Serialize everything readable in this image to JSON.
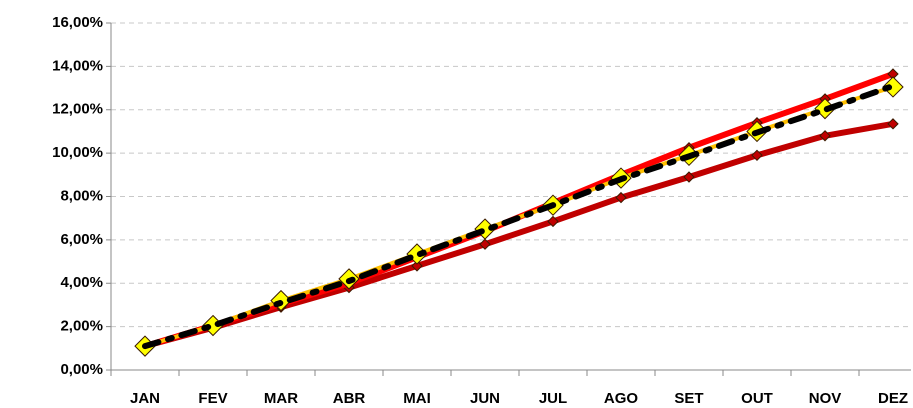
{
  "chart_data": {
    "type": "line",
    "categories": [
      "JAN",
      "FEV",
      "MAR",
      "ABR",
      "MAI",
      "JUN",
      "JUL",
      "AGO",
      "SET",
      "OUT",
      "NOV",
      "DEZ"
    ],
    "series": [
      {
        "color": "#c00000",
        "line_width": 6,
        "marker": "diamond",
        "marker_size": 5,
        "marker_color": "#c00000",
        "values": [
          1.1,
          1.95,
          2.9,
          3.8,
          4.8,
          5.8,
          6.85,
          7.95,
          8.9,
          9.9,
          10.8,
          11.35
        ]
      },
      {
        "color": "#ff0000",
        "line_width": 6,
        "marker": "diamond",
        "marker_size": 5,
        "marker_color": "#c00000",
        "values": [
          1.1,
          2.05,
          3.05,
          4.0,
          5.2,
          6.4,
          7.7,
          9.0,
          10.25,
          11.4,
          12.5,
          13.65
        ]
      },
      {
        "color": "#ffc000",
        "line_width": 4,
        "marker": "diamond",
        "marker_size": 10,
        "marker_color": "#ffff00",
        "values": [
          1.1,
          2.05,
          3.2,
          4.2,
          5.35,
          6.5,
          7.6,
          8.85,
          9.9,
          11.0,
          12.05,
          13.05
        ]
      },
      {
        "color": "#000000",
        "line_width": 6,
        "dash": "14 10 4 10",
        "values": [
          1.1,
          2.05,
          3.1,
          4.1,
          5.3,
          6.45,
          7.6,
          8.8,
          9.85,
          10.95,
          12.0,
          13.1
        ]
      }
    ],
    "ylim": [
      0,
      16
    ],
    "yticks": [
      {
        "value": 0,
        "label": "0,00%"
      },
      {
        "value": 2,
        "label": "2,00%"
      },
      {
        "value": 4,
        "label": "4,00%"
      },
      {
        "value": 6,
        "label": "6,00%"
      },
      {
        "value": 8,
        "label": "8,00%"
      },
      {
        "value": 10,
        "label": "10,00%"
      },
      {
        "value": 12,
        "label": "12,00%"
      },
      {
        "value": 14,
        "label": "14,00%"
      },
      {
        "value": 16,
        "label": "16,00%"
      }
    ],
    "grid": true
  }
}
